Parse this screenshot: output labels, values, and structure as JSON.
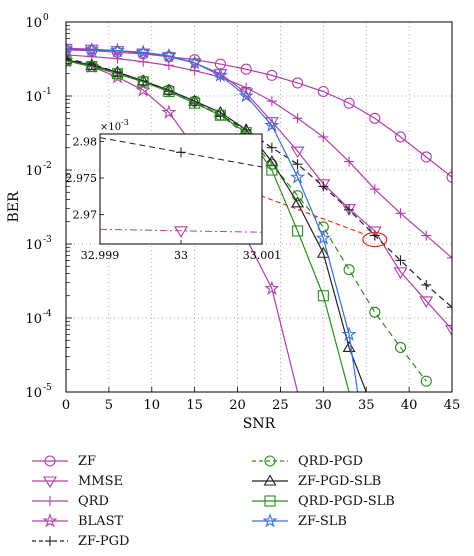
{
  "chart_data": {
    "type": "line",
    "ylog": true,
    "xlabel": "SNR",
    "ylabel": "BER",
    "xlim": [
      0,
      45
    ],
    "ylim": [
      1e-05,
      1
    ],
    "xticks": [
      0,
      5,
      10,
      15,
      20,
      25,
      30,
      35,
      40,
      45
    ],
    "xtick_labels": [
      "0",
      "5",
      "10",
      "15",
      "20",
      "25",
      "30",
      "35",
      "40",
      "45"
    ],
    "yticks": [
      1,
      0.1,
      0.01,
      0.001,
      0.0001,
      1e-05
    ],
    "ytick_labels": [
      "10",
      "10",
      "10",
      "10",
      "10",
      "10"
    ],
    "ytick_exponents": [
      "0",
      "-1",
      "-2",
      "-3",
      "-4",
      "-5"
    ],
    "grid": true,
    "legend_placement": "below",
    "series": [
      {
        "name": "ZF",
        "color": "#b040a8",
        "style": "solid",
        "marker": "circle",
        "x": [
          0,
          3,
          6,
          9,
          12,
          15,
          18,
          21,
          24,
          27,
          30,
          33,
          36,
          39,
          42,
          45
        ],
        "y": [
          0.42,
          0.41,
          0.39,
          0.37,
          0.34,
          0.31,
          0.27,
          0.23,
          0.19,
          0.15,
          0.115,
          0.08,
          0.05,
          0.028,
          0.015,
          0.008
        ]
      },
      {
        "name": "MMSE",
        "color": "#b040a8",
        "style": "solid",
        "marker": "triangle-down",
        "x": [
          0,
          3,
          6,
          9,
          12,
          15,
          18,
          21,
          24,
          27,
          30,
          33,
          36,
          39,
          42,
          45
        ],
        "y": [
          0.44,
          0.43,
          0.41,
          0.38,
          0.34,
          0.28,
          0.2,
          0.11,
          0.045,
          0.018,
          0.0065,
          0.003,
          0.0015,
          0.00042,
          0.00017,
          7e-05
        ]
      },
      {
        "name": "QRD",
        "color": "#b040a8",
        "style": "solid",
        "marker": "plus",
        "x": [
          0,
          3,
          6,
          9,
          12,
          15,
          18,
          21,
          24,
          27,
          30,
          33,
          36,
          39,
          42,
          45
        ],
        "y": [
          0.36,
          0.34,
          0.32,
          0.29,
          0.26,
          0.22,
          0.18,
          0.13,
          0.085,
          0.05,
          0.028,
          0.013,
          0.0055,
          0.0026,
          0.0013,
          0.00065
        ]
      },
      {
        "name": "BLAST",
        "color": "#b040a8",
        "style": "solid",
        "marker": "star",
        "x": [
          0,
          3,
          6,
          9,
          12,
          15,
          18,
          21,
          24,
          27
        ],
        "y": [
          0.3,
          0.25,
          0.18,
          0.12,
          0.06,
          0.02,
          0.0055,
          0.0012,
          0.00025,
          1e-05
        ]
      },
      {
        "name": "ZF-PGD",
        "color": "#222222",
        "style": "dashed",
        "marker": "plus",
        "x": [
          0,
          3,
          6,
          9,
          12,
          15,
          18,
          21,
          24,
          27,
          30,
          33,
          36,
          39,
          42,
          45
        ],
        "y": [
          0.32,
          0.27,
          0.21,
          0.16,
          0.115,
          0.08,
          0.055,
          0.035,
          0.02,
          0.012,
          0.006,
          0.0029,
          0.0013,
          0.0006,
          0.00028,
          0.00014
        ]
      },
      {
        "name": "QRD-PGD",
        "color": "#2e8b20",
        "style": "dashed",
        "marker": "circle",
        "x": [
          0,
          3,
          6,
          9,
          12,
          15,
          18,
          21,
          24,
          27,
          30,
          33,
          36,
          39,
          42
        ],
        "y": [
          0.3,
          0.25,
          0.2,
          0.16,
          0.12,
          0.085,
          0.055,
          0.03,
          0.012,
          0.0045,
          0.0017,
          0.00045,
          0.00012,
          4e-05,
          1.4e-05
        ]
      },
      {
        "name": "ZF-PGD-SLB",
        "color": "#222222",
        "style": "solid",
        "marker": "triangle-up",
        "x": [
          0,
          3,
          6,
          9,
          12,
          15,
          18,
          21,
          24,
          27,
          30,
          33,
          35
        ],
        "y": [
          0.31,
          0.26,
          0.21,
          0.16,
          0.12,
          0.085,
          0.06,
          0.035,
          0.013,
          0.0036,
          0.00075,
          4e-05,
          1e-05
        ]
      },
      {
        "name": "QRD-PGD-SLB",
        "color": "#2e8b20",
        "style": "solid",
        "marker": "square",
        "x": [
          0,
          3,
          6,
          9,
          12,
          15,
          18,
          21,
          24,
          27,
          30,
          33
        ],
        "y": [
          0.3,
          0.25,
          0.2,
          0.155,
          0.115,
          0.08,
          0.055,
          0.032,
          0.01,
          0.0015,
          0.0002,
          1e-05
        ]
      },
      {
        "name": "ZF-SLB",
        "color": "#3a6fd8",
        "style": "solid",
        "marker": "star",
        "x": [
          0,
          3,
          6,
          9,
          12,
          15,
          18,
          21,
          24,
          27,
          30,
          33,
          34
        ],
        "y": [
          0.43,
          0.42,
          0.41,
          0.39,
          0.35,
          0.28,
          0.19,
          0.1,
          0.04,
          0.008,
          0.0012,
          6e-05,
          1e-05
        ]
      }
    ],
    "inset": {
      "xlim": [
        32.999,
        33.001
      ],
      "ylim": [
        0.002966,
        0.002981
      ],
      "xticks": [
        32.999,
        33,
        33.001
      ],
      "xtick_labels": [
        "32.999",
        "33",
        "33.001"
      ],
      "yticks": [
        0.00297,
        0.002975,
        0.00298
      ],
      "ytick_labels": [
        "2.97",
        "2.975",
        "2.98"
      ],
      "yscale_label": "×10",
      "yscale_exponent": "-3",
      "series": [
        {
          "ref": "ZF-PGD",
          "color": "#222222",
          "style": "dashed",
          "marker": "plus",
          "x": [
            32.999,
            33,
            33.001
          ],
          "y": [
            0.0029805,
            0.0029785,
            0.0029765
          ]
        },
        {
          "ref": "MMSE",
          "color": "#b040a8",
          "style": "dashdot",
          "marker": "triangle-down",
          "x": [
            32.999,
            33,
            33.001
          ],
          "y": [
            0.002968,
            0.0029678,
            0.0029676
          ]
        }
      ],
      "zoom_point": {
        "x": 36,
        "y": 0.00115
      }
    }
  }
}
